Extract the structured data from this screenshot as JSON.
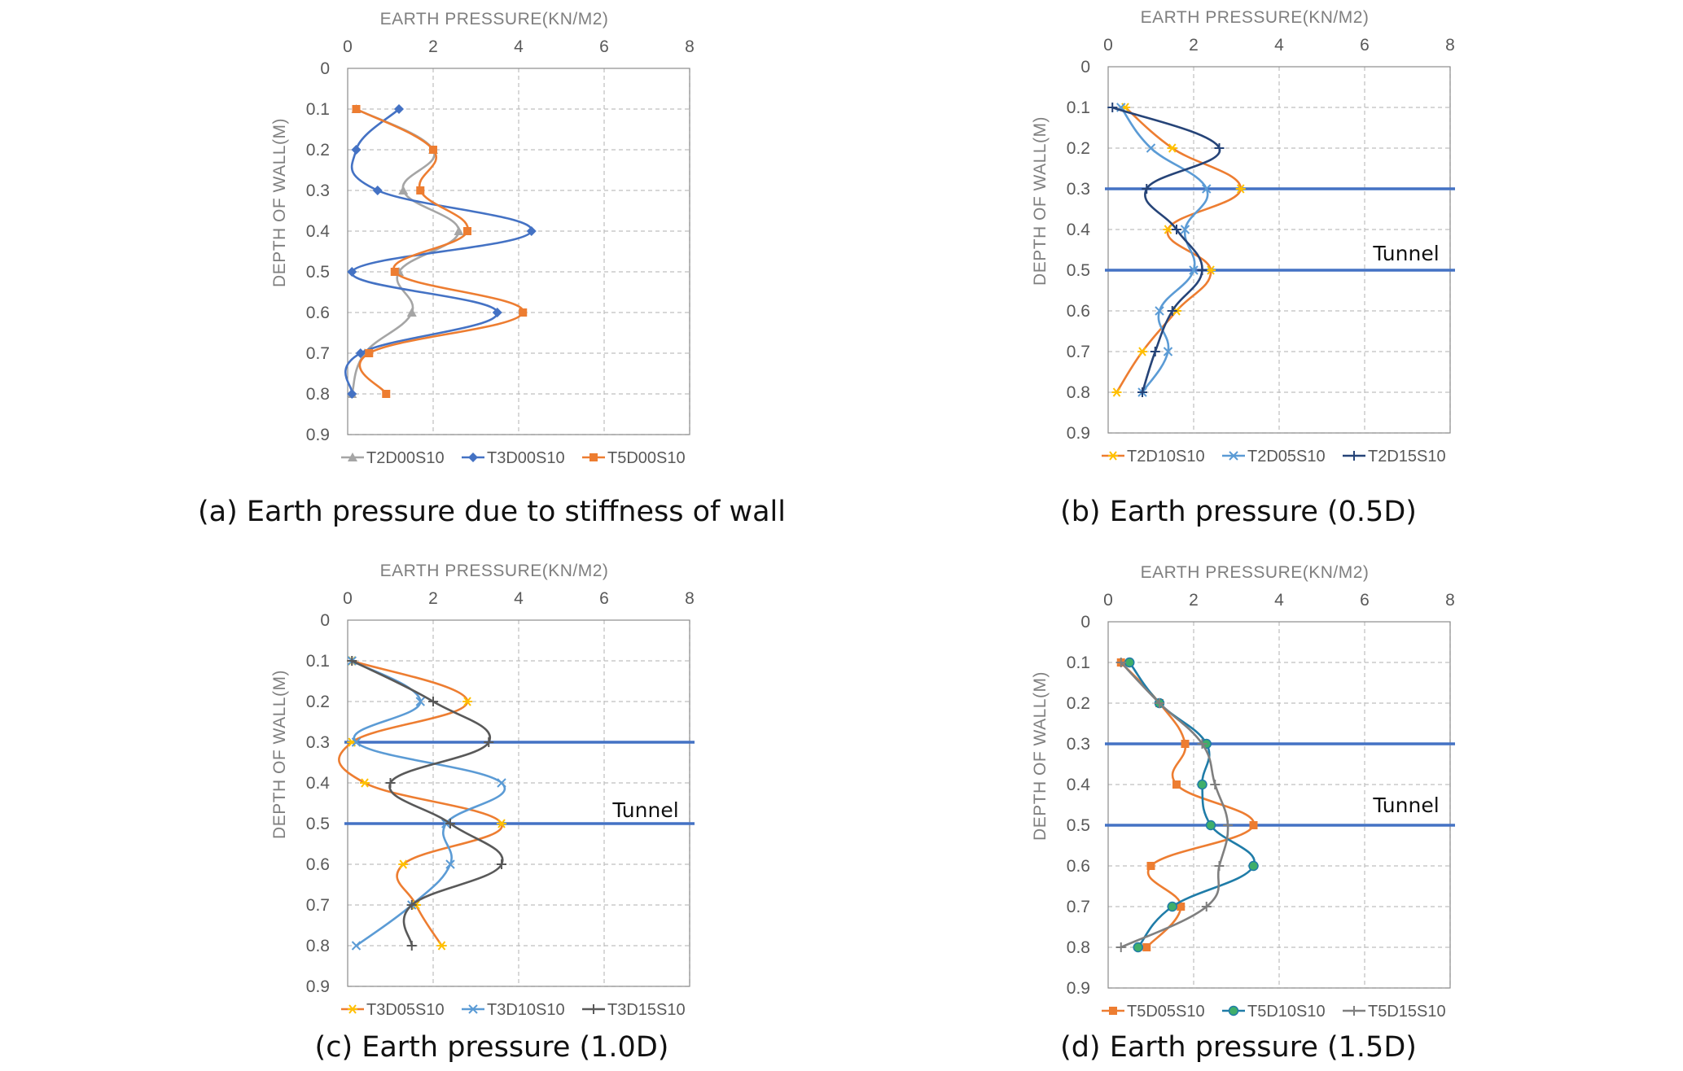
{
  "chart_data": [
    {
      "type": "line",
      "caption": "(a) Earth pressure due to stiffness of wall",
      "xlabel": "EARTH PRESSURE(KN/M2)",
      "ylabel": "DEPTH OF WALL(M)",
      "xlim": [
        0,
        8
      ],
      "ylim": [
        0,
        0.9
      ],
      "x_ticks": [
        "0",
        "2",
        "4",
        "6",
        "8"
      ],
      "y_ticks": [
        "0",
        "0.1",
        "0.2",
        "0.3",
        "0.4",
        "0.5",
        "0.6",
        "0.7",
        "0.8",
        "0.9"
      ],
      "y_inverted": true,
      "grid": true,
      "legend_position": "bottom",
      "annotation": "",
      "tunnel_lines": [],
      "series": [
        {
          "name": "T2D00S10",
          "color": "#a5a5a5",
          "marker": "triangle",
          "depth": [
            0.1,
            0.2,
            0.3,
            0.4,
            0.5,
            0.6,
            0.7,
            0.8
          ],
          "pressure": [
            0.2,
            2.0,
            1.3,
            2.6,
            1.2,
            1.5,
            0.4,
            0.1
          ]
        },
        {
          "name": "T3D00S10",
          "color": "#4472c4",
          "marker": "diamond",
          "depth": [
            0.1,
            0.2,
            0.3,
            0.4,
            0.5,
            0.6,
            0.7,
            0.8
          ],
          "pressure": [
            1.2,
            0.2,
            0.7,
            4.3,
            0.1,
            3.5,
            0.3,
            0.1
          ]
        },
        {
          "name": "T5D00S10",
          "color": "#ed7d31",
          "marker": "square",
          "depth": [
            0.1,
            0.2,
            0.3,
            0.4,
            0.5,
            0.6,
            0.7,
            0.8
          ],
          "pressure": [
            0.2,
            2.0,
            1.7,
            2.8,
            1.1,
            4.1,
            0.5,
            0.9
          ]
        }
      ]
    },
    {
      "type": "line",
      "caption": "(b) Earth pressure (0.5D)",
      "xlabel": "EARTH PRESSURE(KN/M2)",
      "ylabel": "DEPTH OF WALL(M)",
      "xlim": [
        0,
        8
      ],
      "ylim": [
        0,
        0.9
      ],
      "x_ticks": [
        "0",
        "2",
        "4",
        "6",
        "8"
      ],
      "y_ticks": [
        "0",
        "0.1",
        "0.2",
        "0.3",
        "0.4",
        "0.5",
        "0.6",
        "0.7",
        "0.8",
        "0.9"
      ],
      "y_inverted": true,
      "grid": true,
      "legend_position": "bottom",
      "annotation": "Tunnel",
      "tunnel_lines": [
        0.3,
        0.5
      ],
      "series": [
        {
          "name": "T2D10S10",
          "color": "#ed7d31",
          "marker": "star",
          "depth": [
            0.1,
            0.2,
            0.3,
            0.4,
            0.5,
            0.6,
            0.7,
            0.8
          ],
          "pressure": [
            0.4,
            1.5,
            3.1,
            1.4,
            2.4,
            1.6,
            0.8,
            0.2
          ]
        },
        {
          "name": "T2D05S10",
          "color": "#5b9bd5",
          "marker": "x",
          "depth": [
            0.1,
            0.2,
            0.3,
            0.4,
            0.5,
            0.6,
            0.7,
            0.8
          ],
          "pressure": [
            0.3,
            1.0,
            2.3,
            1.8,
            2.0,
            1.2,
            1.4,
            0.8
          ]
        },
        {
          "name": "T2D15S10",
          "color": "#264478",
          "marker": "plus",
          "depth": [
            0.1,
            0.2,
            0.3,
            0.4,
            0.5,
            0.6,
            0.7,
            0.8
          ],
          "pressure": [
            0.1,
            2.6,
            0.9,
            1.6,
            2.2,
            1.5,
            1.1,
            0.8
          ]
        }
      ]
    },
    {
      "type": "line",
      "caption": "(c) Earth pressure (1.0D)",
      "xlabel": "EARTH PRESSURE(KN/M2)",
      "ylabel": "DEPTH OF WALL(M)",
      "xlim": [
        0,
        8
      ],
      "ylim": [
        0,
        0.9
      ],
      "x_ticks": [
        "0",
        "2",
        "4",
        "6",
        "8"
      ],
      "y_ticks": [
        "0",
        "0.1",
        "0.2",
        "0.3",
        "0.4",
        "0.5",
        "0.6",
        "0.7",
        "0.8",
        "0.9"
      ],
      "y_inverted": true,
      "grid": true,
      "legend_position": "bottom",
      "annotation": "Tunnel",
      "tunnel_lines": [
        0.3,
        0.5
      ],
      "series": [
        {
          "name": "T3D05S10",
          "color": "#ed7d31",
          "marker": "star",
          "depth": [
            0.1,
            0.2,
            0.3,
            0.4,
            0.5,
            0.6,
            0.7,
            0.8
          ],
          "pressure": [
            0.1,
            2.8,
            0.1,
            0.4,
            3.6,
            1.3,
            1.6,
            2.2
          ]
        },
        {
          "name": "T3D10S10",
          "color": "#5b9bd5",
          "marker": "x",
          "depth": [
            0.1,
            0.2,
            0.3,
            0.4,
            0.5,
            0.6,
            0.7,
            0.8
          ],
          "pressure": [
            0.1,
            1.7,
            0.2,
            3.6,
            2.3,
            2.4,
            1.5,
            0.2
          ]
        },
        {
          "name": "T3D15S10",
          "color": "#595959",
          "marker": "plus",
          "depth": [
            0.1,
            0.2,
            0.3,
            0.4,
            0.5,
            0.6,
            0.7,
            0.8
          ],
          "pressure": [
            0.1,
            2.0,
            3.3,
            1.0,
            2.4,
            3.6,
            1.5,
            1.5
          ]
        }
      ]
    },
    {
      "type": "line",
      "caption": "(d) Earth pressure (1.5D)",
      "xlabel": "EARTH PRESSURE(KN/M2)",
      "ylabel": "DEPTH OF WALL(M)",
      "xlim": [
        0,
        8
      ],
      "ylim": [
        0,
        0.9
      ],
      "x_ticks": [
        "0",
        "2",
        "4",
        "6",
        "8"
      ],
      "y_ticks": [
        "0",
        "0.1",
        "0.2",
        "0.3",
        "0.4",
        "0.5",
        "0.6",
        "0.7",
        "0.8",
        "0.9"
      ],
      "y_inverted": true,
      "grid": true,
      "legend_position": "bottom",
      "annotation": "Tunnel",
      "tunnel_lines": [
        0.3,
        0.5
      ],
      "series": [
        {
          "name": "T5D05S10",
          "color": "#ed7d31",
          "marker": "square",
          "depth": [
            0.1,
            0.2,
            0.3,
            0.4,
            0.5,
            0.6,
            0.7,
            0.8
          ],
          "pressure": [
            0.3,
            1.2,
            1.8,
            1.6,
            3.4,
            1.0,
            1.7,
            0.9
          ]
        },
        {
          "name": "T5D10S10",
          "color": "#1f7ca8",
          "marker": "circle",
          "depth": [
            0.1,
            0.2,
            0.3,
            0.4,
            0.5,
            0.6,
            0.7,
            0.8
          ],
          "pressure": [
            0.5,
            1.2,
            2.3,
            2.2,
            2.4,
            3.4,
            1.5,
            0.7
          ]
        },
        {
          "name": "T5D15S10",
          "color": "#7f7f7f",
          "marker": "plus",
          "depth": [
            0.1,
            0.2,
            0.3,
            0.4,
            0.5,
            0.6,
            0.7,
            0.8
          ],
          "pressure": [
            0.3,
            1.2,
            2.2,
            2.5,
            2.8,
            2.6,
            2.3,
            0.3
          ]
        }
      ]
    }
  ]
}
